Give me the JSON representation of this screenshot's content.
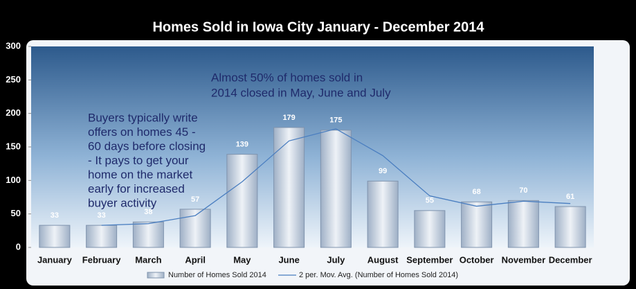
{
  "chart_data": {
    "type": "bar",
    "title": "Homes Sold in Iowa City January - December 2014",
    "categories": [
      "January",
      "February",
      "March",
      "April",
      "May",
      "June",
      "July",
      "August",
      "September",
      "October",
      "November",
      "December"
    ],
    "series": [
      {
        "name": "Number of Homes Sold 2014",
        "type": "bar",
        "color": "#9fb0c6",
        "values": [
          33,
          33,
          38,
          57,
          139,
          179,
          175,
          99,
          55,
          68,
          70,
          61
        ]
      },
      {
        "name": "2 per. Mov. Avg. (Number of Homes Sold 2014)",
        "type": "line",
        "color": "#4a7ec0",
        "values": [
          null,
          33,
          35.5,
          47.5,
          98,
          159,
          177,
          137,
          77,
          61.5,
          69,
          65.5
        ]
      }
    ],
    "ylim": [
      0,
      300
    ],
    "yticks": [
      0,
      50,
      100,
      150,
      200,
      250,
      300
    ],
    "annotations": [
      {
        "lines": [
          "Almost 50% of homes sold in",
          "2014 closed in May, June and July"
        ]
      },
      {
        "lines": [
          "Buyers typically write",
          "offers on homes 45 -",
          "60 days before closing",
          "- It pays to get your",
          "home on the market",
          "early for increased",
          "buyer activity"
        ]
      }
    ],
    "legend": "bottom"
  }
}
